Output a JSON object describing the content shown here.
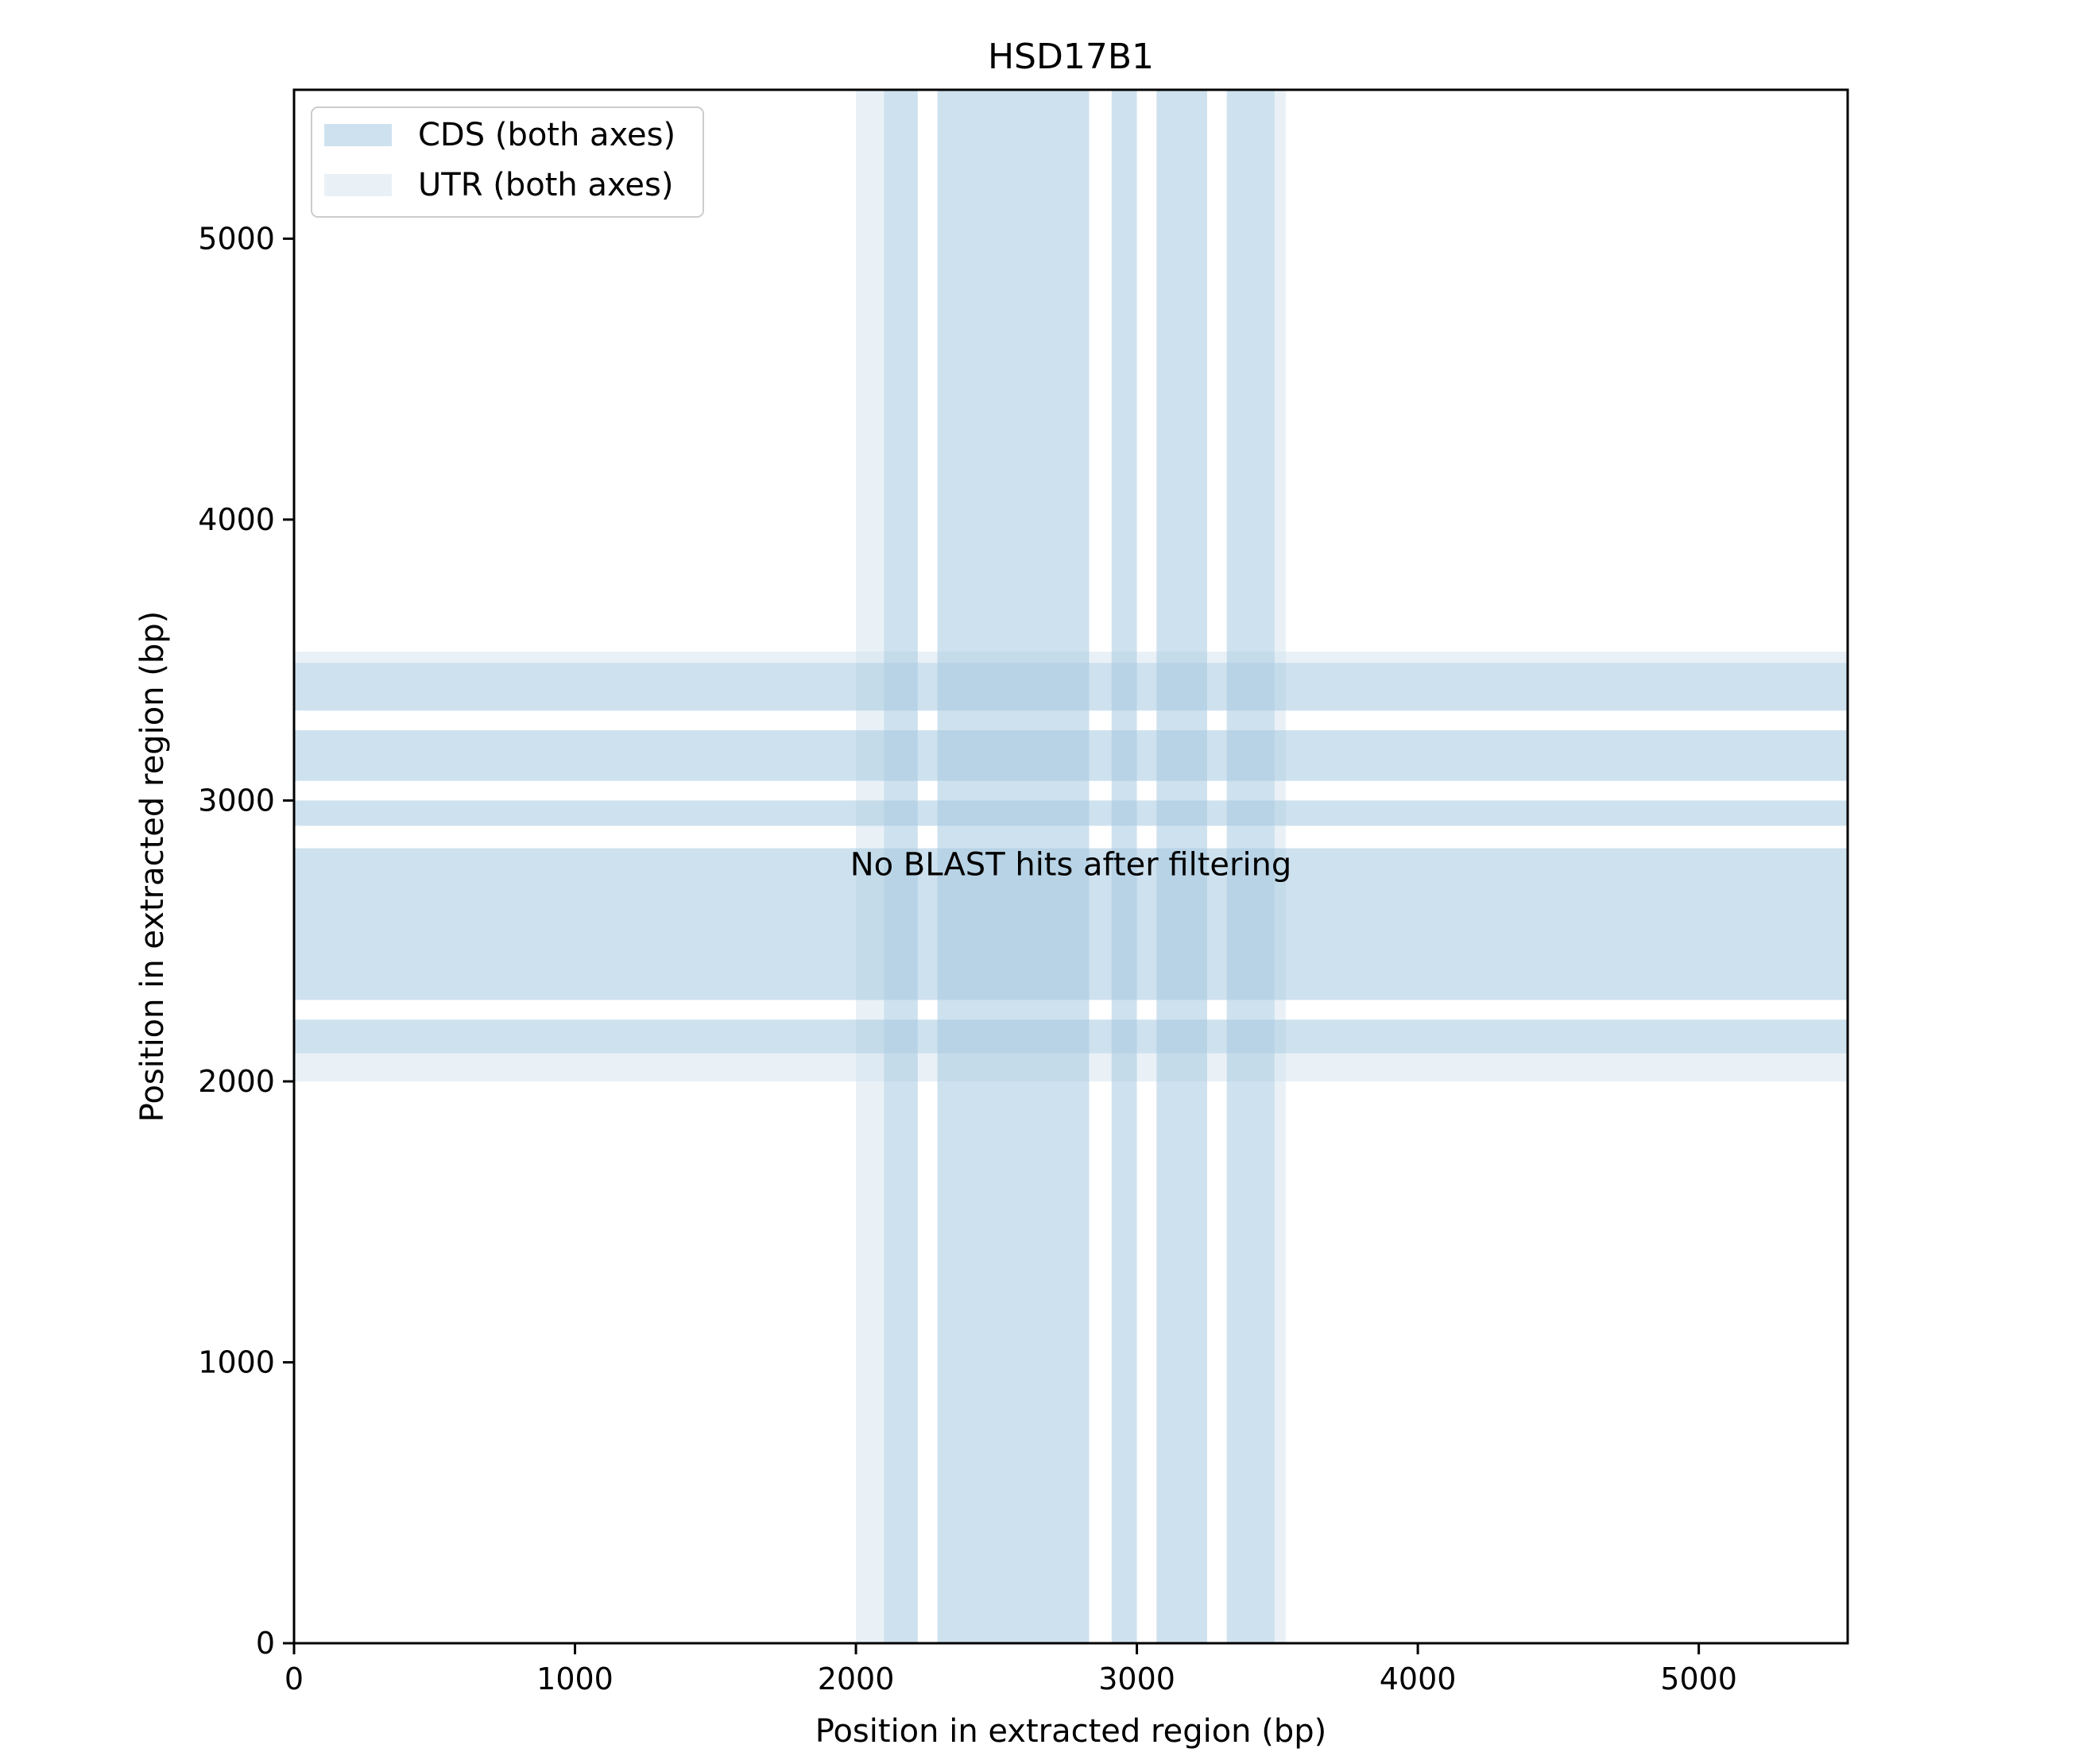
{
  "chart_data": {
    "type": "heatmap",
    "title": "HSD17B1",
    "xlabel": "Position in extracted region (bp)",
    "ylabel": "Position in extracted region (bp)",
    "xlim": [
      0,
      5530
    ],
    "ylim": [
      0,
      5530
    ],
    "xticks": [
      0,
      1000,
      2000,
      3000,
      4000,
      5000
    ],
    "yticks": [
      0,
      1000,
      2000,
      3000,
      4000,
      5000
    ],
    "grid": false,
    "legend": {
      "placement": "upper-left",
      "entries": [
        {
          "label": "CDS (both axes)",
          "kind": "cds"
        },
        {
          "label": "UTR (both axes)",
          "kind": "utr"
        }
      ]
    },
    "colors": {
      "cds": "#a6c8e0",
      "utr": "#d3e3f0",
      "cds_alpha": 0.55,
      "utr_alpha": 0.5
    },
    "utr_regions": [
      [
        2000,
        2100
      ],
      [
        3490,
        3530
      ]
    ],
    "cds_regions": [
      [
        2100,
        2220
      ],
      [
        2290,
        2830
      ],
      [
        2910,
        3000
      ],
      [
        3070,
        3250
      ],
      [
        3320,
        3490
      ]
    ],
    "annotation": {
      "text": "No BLAST hits after filtering",
      "x": 2765,
      "y": 2765
    }
  }
}
